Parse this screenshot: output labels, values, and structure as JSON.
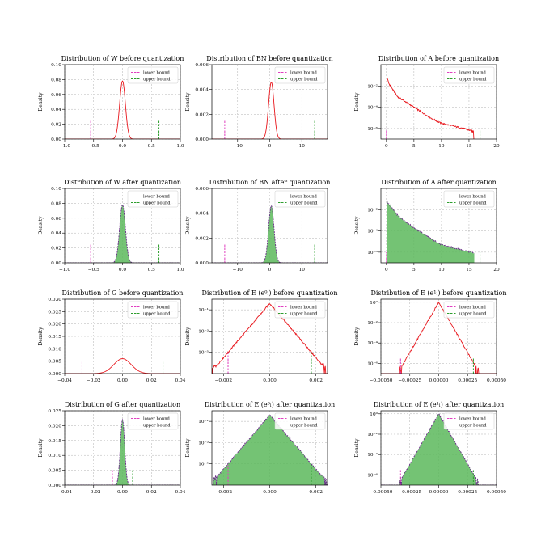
{
  "legend": {
    "lower": "lower bound",
    "upper": "upper bound"
  },
  "colors": {
    "kde": "#e8161c",
    "hist_fill": "#5cb85c",
    "hist_edge": "#6a2a8a",
    "lower": "#e040c0",
    "upper": "#2e9e2e",
    "grid": "#b0b0b0"
  },
  "chart_data": [
    {
      "title": "Distribution of W before quantization",
      "type": "line",
      "ylabel": "Density",
      "xscale": "linear",
      "yscale": "linear",
      "xlim": [
        -1.0,
        1.0
      ],
      "ylim": [
        0,
        0.1
      ],
      "xticks": [
        -1.0,
        -0.5,
        0.0,
        0.5,
        1.0
      ],
      "xtick_labels": [
        "−1.0",
        "−0.5",
        "0.0",
        "0.5",
        "1.0"
      ],
      "yticks": [
        0,
        0.02,
        0.04,
        0.06,
        0.08,
        0.1
      ],
      "ytick_labels": [
        "0.00",
        "0.02",
        "0.04",
        "0.06",
        "0.08",
        "0.10"
      ],
      "series": {
        "kind": "gauss",
        "center": 0.0,
        "sigma": 0.05,
        "peak": 0.078,
        "histogram": false
      },
      "bounds": {
        "lower": {
          "x": -0.55,
          "top": 0.025
        },
        "upper": {
          "x": 0.63,
          "top": 0.025
        }
      }
    },
    {
      "title": "Distribution of BN before quantization",
      "type": "line",
      "ylabel": "Density",
      "xscale": "linear",
      "yscale": "linear",
      "xlim": [
        -18,
        18
      ],
      "ylim": [
        0,
        0.006
      ],
      "xticks": [
        -10,
        0,
        10
      ],
      "xtick_labels": [
        "−10",
        "0",
        "10"
      ],
      "yticks": [
        0,
        0.002,
        0.004,
        0.006
      ],
      "ytick_labels": [
        "0.000",
        "0.002",
        "0.004",
        "0.006"
      ],
      "series": {
        "kind": "gauss",
        "center": 0.5,
        "sigma": 0.85,
        "peak": 0.0046,
        "histogram": false
      },
      "bounds": {
        "lower": {
          "x": -14,
          "top": 0.0015
        },
        "upper": {
          "x": 14,
          "top": 0.0015
        }
      }
    },
    {
      "title": "Distribution of A before quantization",
      "type": "line",
      "ylabel": "Density",
      "xscale": "linear",
      "yscale": "log",
      "xlim": [
        -1,
        20
      ],
      "ylim": [
        1e-07,
        1.0
      ],
      "xticks": [
        0,
        5,
        10,
        15,
        20
      ],
      "xtick_labels": [
        "0",
        "5",
        "10",
        "15",
        "20"
      ],
      "yticks": [
        0.01,
        0.0001,
        1e-06
      ],
      "ytick_labels": [
        "10⁻²",
        "10⁻⁴",
        "10⁻⁶"
      ],
      "series": {
        "kind": "relu",
        "start": 0.0,
        "peak": 0.08,
        "shape": [
          [
            0,
            0.08
          ],
          [
            0.5,
            0.015
          ],
          [
            2,
            0.001
          ],
          [
            5,
            0.0001
          ],
          [
            8,
            1e-05
          ],
          [
            10,
            3e-06
          ],
          [
            14,
            1e-06
          ],
          [
            16,
            5e-07
          ]
        ],
        "histogram": false
      },
      "bounds": {
        "lower": {
          "x": 0.0,
          "top": 1e-06
        },
        "upper": {
          "x": 17,
          "top": 1e-06
        }
      }
    },
    {
      "title": "Distribution of W after quantization",
      "type": "area",
      "ylabel": "Density",
      "xscale": "linear",
      "yscale": "linear",
      "xlim": [
        -1.0,
        1.0
      ],
      "ylim": [
        0,
        0.1
      ],
      "xticks": [
        -1.0,
        -0.5,
        0.0,
        0.5,
        1.0
      ],
      "xtick_labels": [
        "−1.0",
        "−0.5",
        "0.0",
        "0.5",
        "1.0"
      ],
      "yticks": [
        0,
        0.02,
        0.04,
        0.06,
        0.08,
        0.1
      ],
      "ytick_labels": [
        "0.00",
        "0.02",
        "0.04",
        "0.06",
        "0.08",
        "0.10"
      ],
      "series": {
        "kind": "gauss",
        "center": 0.0,
        "sigma": 0.05,
        "peak": 0.078,
        "histogram": true
      },
      "bounds": {
        "lower": {
          "x": -0.55,
          "top": 0.025
        },
        "upper": {
          "x": 0.63,
          "top": 0.025
        }
      }
    },
    {
      "title": "Distribution of BN after quantization",
      "type": "area",
      "ylabel": "Density",
      "xscale": "linear",
      "yscale": "linear",
      "xlim": [
        -18,
        18
      ],
      "ylim": [
        0,
        0.006
      ],
      "xticks": [
        -10,
        0,
        10
      ],
      "xtick_labels": [
        "−10",
        "0",
        "10"
      ],
      "yticks": [
        0,
        0.002,
        0.004,
        0.006
      ],
      "ytick_labels": [
        "0.000",
        "0.002",
        "0.004",
        "0.006"
      ],
      "series": {
        "kind": "gauss",
        "center": 0.5,
        "sigma": 0.85,
        "peak": 0.0046,
        "histogram": true
      },
      "bounds": {
        "lower": {
          "x": -14,
          "top": 0.0015
        },
        "upper": {
          "x": 14,
          "top": 0.0015
        }
      }
    },
    {
      "title": "Distribution of A after quantization",
      "type": "area",
      "ylabel": "Density",
      "xscale": "linear",
      "yscale": "log",
      "xlim": [
        -1,
        20
      ],
      "ylim": [
        1e-07,
        1.0
      ],
      "xticks": [
        0,
        5,
        10,
        15,
        20
      ],
      "xtick_labels": [
        "0",
        "5",
        "10",
        "15",
        "20"
      ],
      "yticks": [
        0.01,
        0.0001,
        1e-06
      ],
      "ytick_labels": [
        "10⁻²",
        "10⁻⁴",
        "10⁻⁶"
      ],
      "series": {
        "kind": "relu",
        "start": 0.0,
        "peak": 0.08,
        "shape": [
          [
            0,
            0.08
          ],
          [
            0.5,
            0.03
          ],
          [
            2,
            0.003
          ],
          [
            5,
            0.0002
          ],
          [
            8,
            2e-05
          ],
          [
            10,
            5e-06
          ],
          [
            14,
            1.5e-06
          ],
          [
            16,
            8e-07
          ]
        ],
        "histogram": true
      },
      "bounds": {
        "lower": {
          "x": 0.0,
          "top": 1e-06
        },
        "upper": {
          "x": 17,
          "top": 1e-06
        }
      }
    },
    {
      "title": "Distribution of G before quantization",
      "type": "line",
      "ylabel": "Density",
      "xscale": "linear",
      "yscale": "linear",
      "xlim": [
        -0.04,
        0.04
      ],
      "ylim": [
        0,
        0.03
      ],
      "xticks": [
        -0.04,
        -0.02,
        0.0,
        0.02,
        0.04
      ],
      "xtick_labels": [
        "−0.04",
        "−0.02",
        "0.00",
        "0.02",
        "0.04"
      ],
      "yticks": [
        0,
        0.005,
        0.01,
        0.015,
        0.02,
        0.025,
        0.03
      ],
      "ytick_labels": [
        "0.000",
        "0.005",
        "0.010",
        "0.015",
        "0.020",
        "0.025",
        "0.030"
      ],
      "series": {
        "kind": "gauss",
        "center": 0.0,
        "sigma": 0.006,
        "peak": 0.006,
        "histogram": false
      },
      "bounds": {
        "lower": {
          "x": -0.028,
          "top": 0.005
        },
        "upper": {
          "x": 0.028,
          "top": 0.005
        }
      }
    },
    {
      "title": "Distribution of E (e⁰ₗ) before quantization",
      "type": "line",
      "ylabel": "Density",
      "xscale": "linear",
      "yscale": "log",
      "xlim": [
        -0.0025,
        0.0025
      ],
      "ylim": [
        1e-07,
        1.0
      ],
      "xticks": [
        -0.002,
        0.0,
        0.002
      ],
      "xtick_labels": [
        "−0.002",
        "0.000",
        "0.002"
      ],
      "yticks": [
        0.1,
        0.001,
        1e-05
      ],
      "ytick_labels": [
        "10⁻¹",
        "10⁻³",
        "10⁻⁵"
      ],
      "series": {
        "kind": "laplace",
        "center": 0.0,
        "scale": 0.00017,
        "peak": 0.4,
        "histogram": false
      },
      "bounds": {
        "lower": {
          "x": -0.0018,
          "top": 8e-06
        },
        "upper": {
          "x": 0.0018,
          "top": 8e-06
        }
      }
    },
    {
      "title": "Distribution of E (e¹ₗ) before quantization",
      "type": "line",
      "ylabel": "Density",
      "xscale": "linear",
      "yscale": "log",
      "xlim": [
        -0.0005,
        0.0005
      ],
      "ylim": [
        1e-07,
        2.0
      ],
      "xticks": [
        -0.0005,
        -0.00025,
        0.0,
        0.00025,
        0.0005
      ],
      "xtick_labels": [
        "−0.00050",
        "−0.00025",
        "0.00000",
        "0.00025",
        "0.00050"
      ],
      "yticks": [
        1,
        0.01,
        0.0001,
        1e-06
      ],
      "ytick_labels": [
        "10⁰",
        "10⁻²",
        "10⁻⁴",
        "10⁻⁶"
      ],
      "series": {
        "kind": "laplace",
        "center": 0.0,
        "scale": 2.2e-05,
        "peak": 1.0,
        "histogram": false
      },
      "bounds": {
        "lower": {
          "x": -0.00033,
          "top": 3e-06
        },
        "upper": {
          "x": 0.0003,
          "top": 3e-06
        }
      }
    },
    {
      "title": "Distribution of G after quantization",
      "type": "area",
      "ylabel": "Density",
      "xscale": "linear",
      "yscale": "linear",
      "xlim": [
        -0.04,
        0.04
      ],
      "ylim": [
        0,
        0.025
      ],
      "xticks": [
        -0.04,
        -0.02,
        0.0,
        0.02,
        0.04
      ],
      "xtick_labels": [
        "−0.04",
        "−0.02",
        "0.00",
        "0.02",
        "0.04"
      ],
      "yticks": [
        0,
        0.005,
        0.01,
        0.015,
        0.02,
        0.025
      ],
      "ytick_labels": [
        "0.000",
        "0.005",
        "0.010",
        "0.015",
        "0.020",
        "0.025"
      ],
      "series": {
        "kind": "gauss",
        "center": 0.0,
        "sigma": 0.0015,
        "peak": 0.022,
        "histogram": true
      },
      "bounds": {
        "lower": {
          "x": -0.007,
          "top": 0.005
        },
        "upper": {
          "x": 0.007,
          "top": 0.005
        }
      }
    },
    {
      "title": "Distribution of E (e⁰ₗ) after quantization",
      "type": "area",
      "ylabel": "Density",
      "xscale": "linear",
      "yscale": "log",
      "xlim": [
        -0.0025,
        0.0025
      ],
      "ylim": [
        1e-07,
        1.0
      ],
      "xticks": [
        -0.002,
        0.0,
        0.002
      ],
      "xtick_labels": [
        "−0.002",
        "0.000",
        "0.002"
      ],
      "yticks": [
        0.1,
        0.001,
        1e-05
      ],
      "ytick_labels": [
        "10⁻¹",
        "10⁻³",
        "10⁻⁵"
      ],
      "series": {
        "kind": "laplace",
        "center": 0.0,
        "scale": 0.00017,
        "peak": 0.4,
        "histogram": true
      },
      "bounds": {
        "lower": {
          "x": -0.0018,
          "top": 8e-06
        },
        "upper": {
          "x": 0.0018,
          "top": 8e-06
        }
      }
    },
    {
      "title": "Distribution of E (e¹ₗ) after quantization",
      "type": "area",
      "ylabel": "Density",
      "xscale": "linear",
      "yscale": "log",
      "xlim": [
        -0.0005,
        0.0005
      ],
      "ylim": [
        1e-07,
        2.0
      ],
      "xticks": [
        -0.0005,
        -0.00025,
        0.0,
        0.00025,
        0.0005
      ],
      "xtick_labels": [
        "−0.00050",
        "−0.00025",
        "0.00000",
        "0.00025",
        "0.00050"
      ],
      "yticks": [
        1,
        0.01,
        0.0001,
        1e-06
      ],
      "ytick_labels": [
        "10⁰",
        "10⁻²",
        "10⁻⁴",
        "10⁻⁶"
      ],
      "series": {
        "kind": "laplace",
        "center": 0.0,
        "scale": 2.2e-05,
        "peak": 1.0,
        "histogram": true
      },
      "bounds": {
        "lower": {
          "x": -0.00033,
          "top": 3e-06
        },
        "upper": {
          "x": 0.0003,
          "top": 3e-06
        }
      }
    }
  ]
}
